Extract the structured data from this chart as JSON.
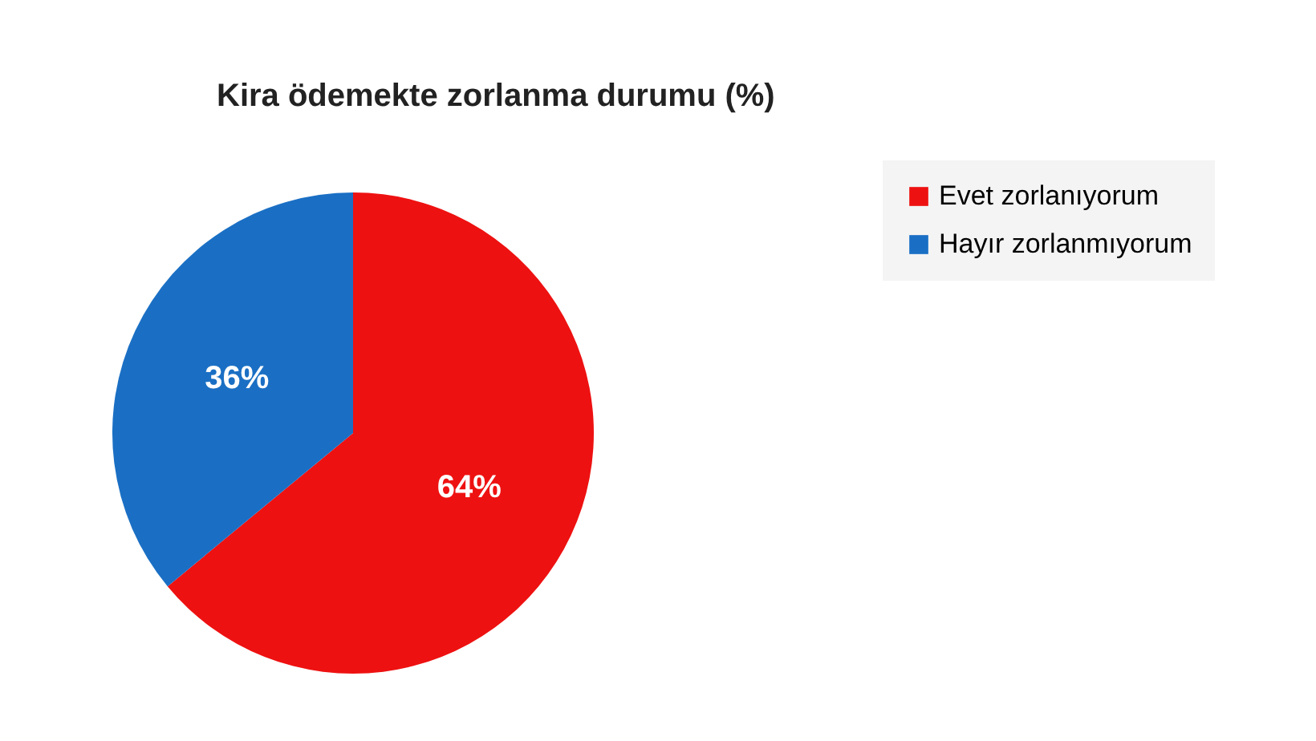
{
  "chart_data": {
    "type": "pie",
    "title": "Kira ödemekte zorlanma durumu (%)",
    "categories": [
      "Evet zorlanıyorum",
      "Hayır zorlanmıyorum"
    ],
    "values": [
      64,
      36
    ],
    "colors": [
      "#ee1111",
      "#1a6fc4"
    ],
    "value_labels": [
      "64%",
      "36%"
    ],
    "legend": "right"
  }
}
